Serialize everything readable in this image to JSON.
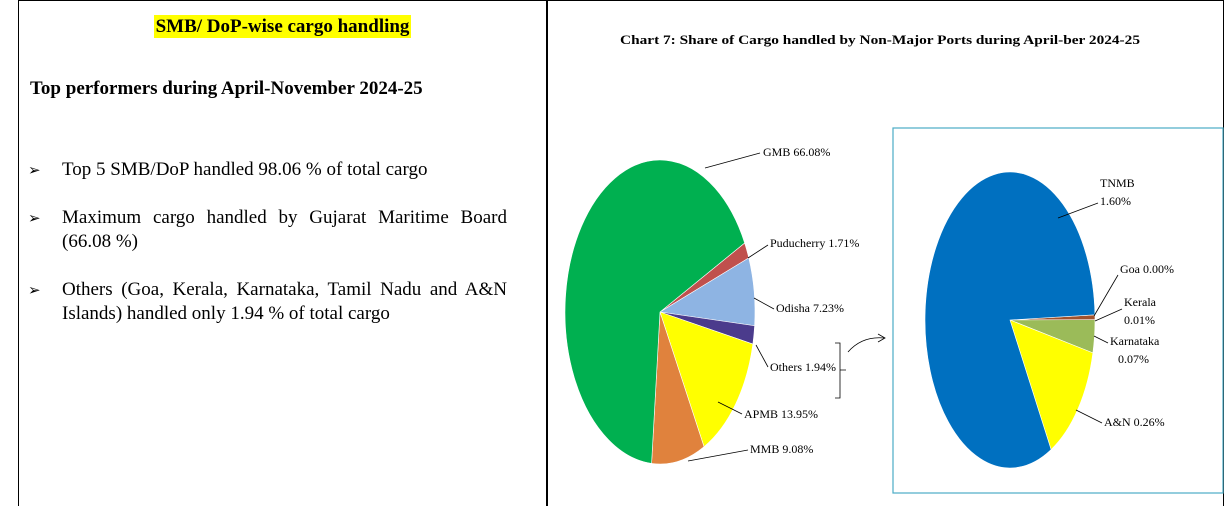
{
  "left": {
    "heading": "SMB/ DoP-wise cargo handling",
    "subheading": "Top performers during April-November 2024-25",
    "bullets": [
      "Top 5 SMB/DoP handled 98.06 % of total cargo",
      "Maximum cargo handled by Gujarat Maritime Board (66.08 %)",
      "Others (Goa, Kerala, Karnataka, Tamil Nadu and A&N Islands) handled only 1.94 % of total cargo"
    ]
  },
  "chart_data": {
    "type": "pie",
    "title": "Chart 7: Share of Cargo handled by Non-Major Ports during April-ber 2024-25",
    "categories": [
      "Puducherry",
      "Odisha",
      "Others",
      "APMB",
      "MMB",
      "GMB"
    ],
    "values": [
      1.71,
      7.23,
      1.94,
      13.95,
      9.08,
      66.08
    ],
    "value_labels": [
      "1.71%",
      "7.23%",
      "1.94%",
      "13.95%",
      "9.08%",
      "66.08%"
    ],
    "colors": [
      "#c0504d",
      "#8eb4e3",
      "#4b3b8c",
      "#ffff00",
      "#e0823d",
      "#00b050"
    ],
    "breakdown": {
      "type": "pie",
      "categories": [
        "Goa",
        "Kerala",
        "Karnataka",
        "A&N",
        "TNMB"
      ],
      "values": [
        0.0,
        0.01,
        0.07,
        0.26,
        1.6
      ],
      "value_labels": [
        "0.00%",
        "0.01%",
        "0.07%",
        "0.26%",
        "1.60%"
      ],
      "colors": [
        "#7f7f7f",
        "#a0522d",
        "#9bbb59",
        "#ffff00",
        "#0070c0"
      ]
    }
  }
}
